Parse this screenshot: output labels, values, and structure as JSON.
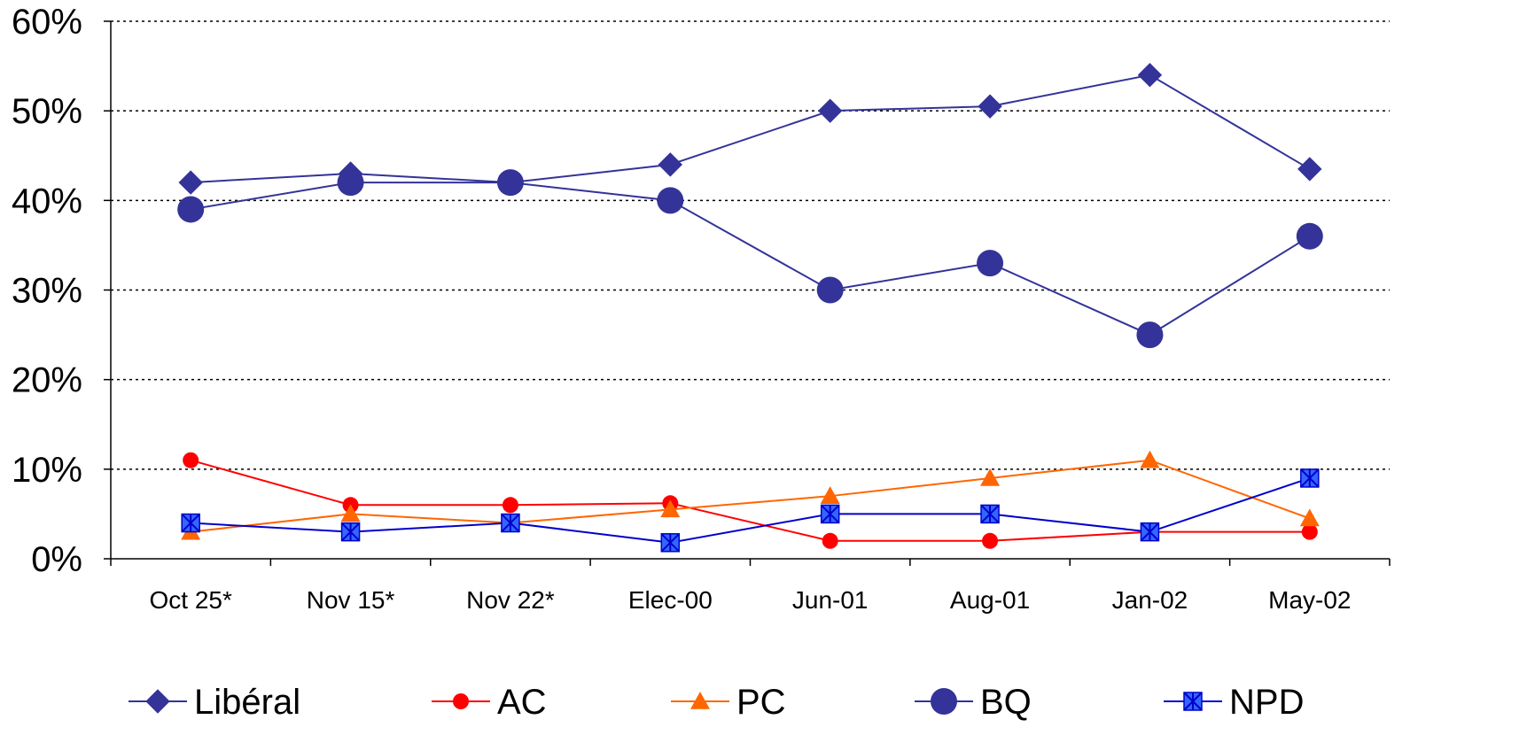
{
  "chart_data": {
    "type": "line",
    "title": "",
    "xlabel": "",
    "ylabel": "",
    "categories": [
      "Oct 25*",
      "Nov 15*",
      "Nov 22*",
      "Elec-00",
      "Jun-01",
      "Aug-01",
      "Jan-02",
      "May-02"
    ],
    "ylim": [
      0,
      60
    ],
    "yticks": [
      "0%",
      "10%",
      "20%",
      "30%",
      "40%",
      "50%",
      "60%"
    ],
    "grid": "horizontal dotted",
    "legend_position": "bottom",
    "series": [
      {
        "name": "Libéral",
        "color": "#333399",
        "marker": "diamond",
        "values": [
          42,
          43,
          42,
          44,
          50,
          50.5,
          54,
          43.5
        ]
      },
      {
        "name": "AC",
        "color": "#ff0000",
        "marker": "circle",
        "values": [
          11,
          6,
          6,
          6.2,
          2,
          2,
          3,
          3
        ]
      },
      {
        "name": "PC",
        "color": "#ff6600",
        "marker": "triangle",
        "values": [
          3,
          5,
          4,
          5.5,
          7,
          9,
          11,
          4.5
        ]
      },
      {
        "name": "BQ",
        "color": "#333399",
        "marker": "big-circle",
        "values": [
          39,
          42,
          42,
          40,
          30,
          33,
          25,
          36
        ]
      },
      {
        "name": "NPD",
        "color": "#0000cc",
        "marker": "square-x",
        "values": [
          4,
          3,
          4,
          1.8,
          5,
          5,
          3,
          9
        ]
      }
    ]
  }
}
